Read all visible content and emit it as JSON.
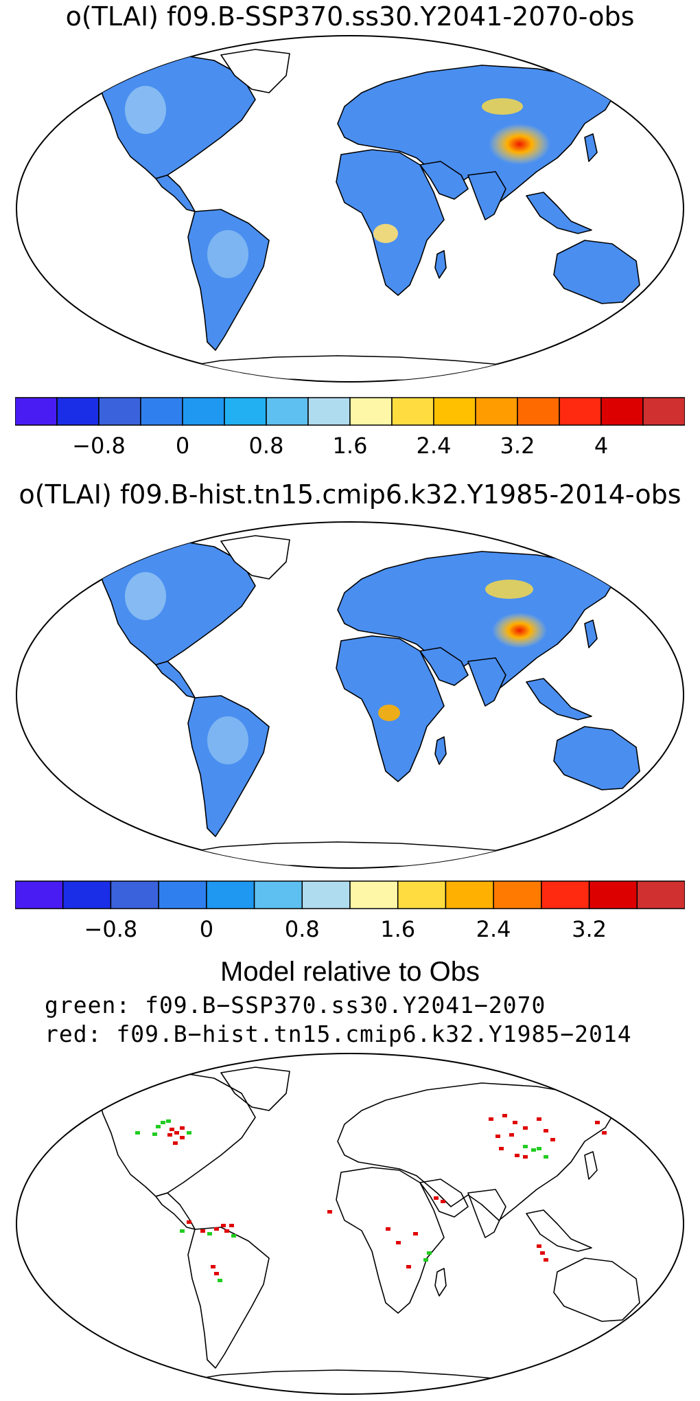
{
  "panel1": {
    "title": "o(TLAI) f09.B-SSP370.ss30.Y2041-2070-obs",
    "colorbar": {
      "colors": [
        "#4a1cf4",
        "#1a2ee8",
        "#3a62dc",
        "#2f80ee",
        "#1e98f0",
        "#22b0f2",
        "#5ec0f0",
        "#b0dcf0",
        "#fff7a8",
        "#ffdd40",
        "#ffc000",
        "#ff9c00",
        "#ff6a00",
        "#ff2a10",
        "#dd0000",
        "#d03030"
      ],
      "tick_labels": [
        "−0.8",
        "0",
        "0.8",
        "1.6",
        "2.4",
        "3.2",
        "4"
      ]
    }
  },
  "panel2": {
    "title": "o(TLAI) f09.B-hist.tn15.cmip6.k32.Y1985-2014-obs",
    "colorbar": {
      "colors": [
        "#4a1cf4",
        "#1a2ee8",
        "#3a62dc",
        "#2f80ee",
        "#1e98f0",
        "#5ec0f0",
        "#b0dcf0",
        "#fff7a8",
        "#ffdd40",
        "#ffb000",
        "#ff7a00",
        "#ff2a10",
        "#dd0000",
        "#d03030"
      ],
      "tick_labels": [
        "−0.8",
        "0",
        "0.8",
        "1.6",
        "2.4",
        "3.2"
      ]
    }
  },
  "panel3": {
    "title": "Model relative to Obs",
    "legend_green": "green: f09.B−SSP370.ss30.Y2041−2070",
    "legend_red": "red: f09.B−hist.tn15.cmip6.k32.Y1985−2014",
    "colors": {
      "green": "#22cc22",
      "red": "#e00000"
    }
  },
  "map_style": {
    "land_fill": "#4a8ef0",
    "land_light": "#9ecff2",
    "coast": "#000000"
  }
}
